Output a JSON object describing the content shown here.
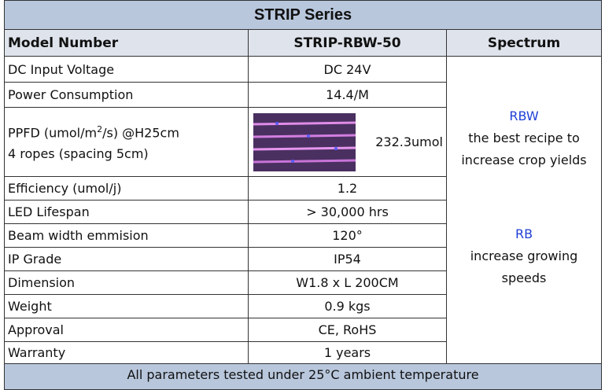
{
  "table": {
    "title": "STRIP Series",
    "headers": [
      "Model Number",
      "STRIP-RBW-50",
      "Spectrum"
    ],
    "rows": [
      [
        "DC Input Voltage",
        "DC 24V"
      ],
      [
        "Power Consumption",
        "14.4/M"
      ],
      [
        {
          "parts": [
            "PPFD (umol/m",
            "2",
            "/s) @H25cm"
          ],
          "line2": "4 ropes (spacing 5cm)"
        },
        "232.3umol"
      ],
      [
        "Efficiency (umol/j)",
        "1.2"
      ],
      [
        "LED Lifespan",
        "> 30,000 hrs"
      ],
      [
        "Beam width emmision",
        "120°"
      ],
      [
        "IP Grade",
        "IP54"
      ],
      [
        "Dimension",
        "W1.8 x L 200CM"
      ],
      [
        "Weight",
        "0.9 kgs"
      ],
      [
        "Approval",
        "CE, RoHS"
      ],
      [
        "Warranty",
        "1 years"
      ]
    ],
    "spectrum": [
      {
        "name": "RBW",
        "lines": [
          "the best recipe to",
          "increase crop yields"
        ]
      },
      {
        "name": "RB",
        "lines": [
          "increase growing",
          "speeds"
        ]
      }
    ],
    "footer": "All parameters tested under 25°C ambient temperature"
  }
}
